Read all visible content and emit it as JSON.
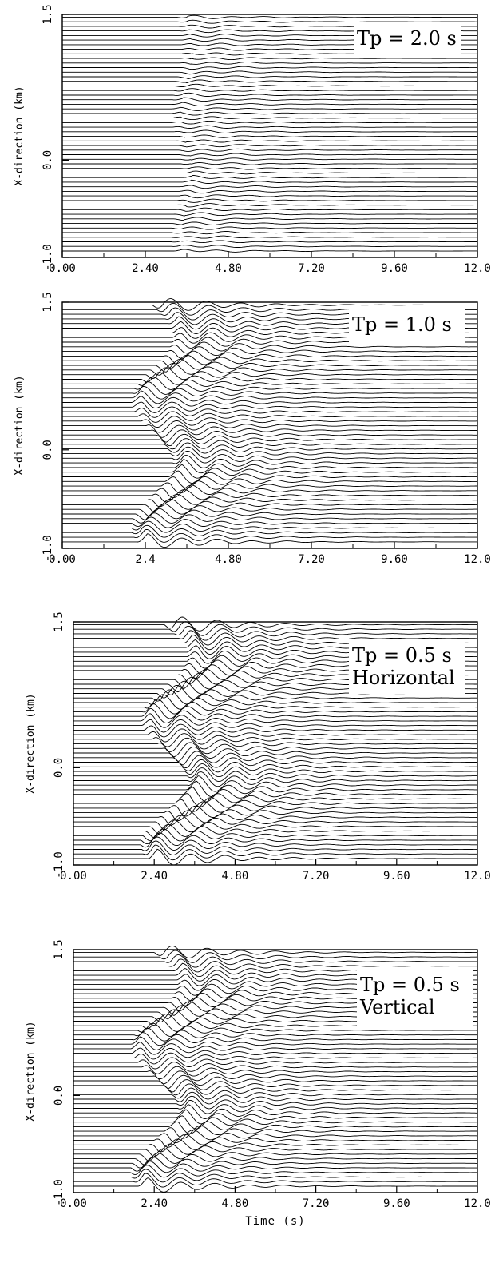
{
  "chart_data": [
    {
      "type": "line",
      "title": "",
      "annotation": [
        "Tp = 2.0 s"
      ],
      "ylabel": "X-direction (km)",
      "xlabel": "",
      "x_ticks": [
        "0.00",
        "2.40",
        "4.80",
        "7.20",
        "9.60",
        "12.0"
      ],
      "y_ticks": [
        "1.5",
        "0.0",
        "-1.0"
      ],
      "xlim": [
        0,
        12
      ],
      "ylim": [
        -1.0,
        1.5
      ],
      "grid": false,
      "wave": {
        "arrival_time": 3.6,
        "amplitude": 0.35,
        "scatter": 0.15
      }
    },
    {
      "type": "line",
      "title": "",
      "annotation": [
        "Tp = 1.0 s"
      ],
      "ylabel": "X-direction (km)",
      "xlabel": "",
      "x_ticks": [
        "0.00",
        "2.4",
        "4.80",
        "7.20",
        "9.60",
        "12.0"
      ],
      "y_ticks": [
        "1.5",
        "0.0",
        "-1.0"
      ],
      "xlim": [
        0,
        12
      ],
      "ylim": [
        -1.0,
        1.5
      ],
      "grid": false,
      "wave": {
        "arrival_time": 2.9,
        "amplitude": 1.6,
        "scatter": 0.6
      }
    },
    {
      "type": "line",
      "title": "",
      "annotation": [
        "Tp = 0.5 s",
        "Horizontal"
      ],
      "ylabel": "X-direction (km)",
      "xlabel": "",
      "x_ticks": [
        "0.00",
        "2.40",
        "4.80",
        "7.20",
        "9.60",
        "12.0"
      ],
      "y_ticks": [
        "1.5",
        "0.0",
        "-1.0"
      ],
      "xlim": [
        0,
        12
      ],
      "ylim": [
        -1.0,
        1.5
      ],
      "grid": false,
      "wave": {
        "arrival_time": 3.0,
        "amplitude": 1.9,
        "scatter": 0.7
      }
    },
    {
      "type": "line",
      "title": "",
      "annotation": [
        "Tp = 0.5 s",
        "Vertical"
      ],
      "ylabel": "X-direction (km)",
      "xlabel": "Time (s)",
      "x_ticks": [
        "0.00",
        "2.40",
        "4.80",
        "7.20",
        "9.60",
        "12.0"
      ],
      "y_ticks": [
        "1.5",
        "0.0",
        "-1.0"
      ],
      "xlim": [
        0,
        12
      ],
      "ylim": [
        -1.0,
        1.5
      ],
      "grid": false,
      "wave": {
        "arrival_time": 2.7,
        "amplitude": 1.7,
        "scatter": 0.7
      }
    }
  ]
}
